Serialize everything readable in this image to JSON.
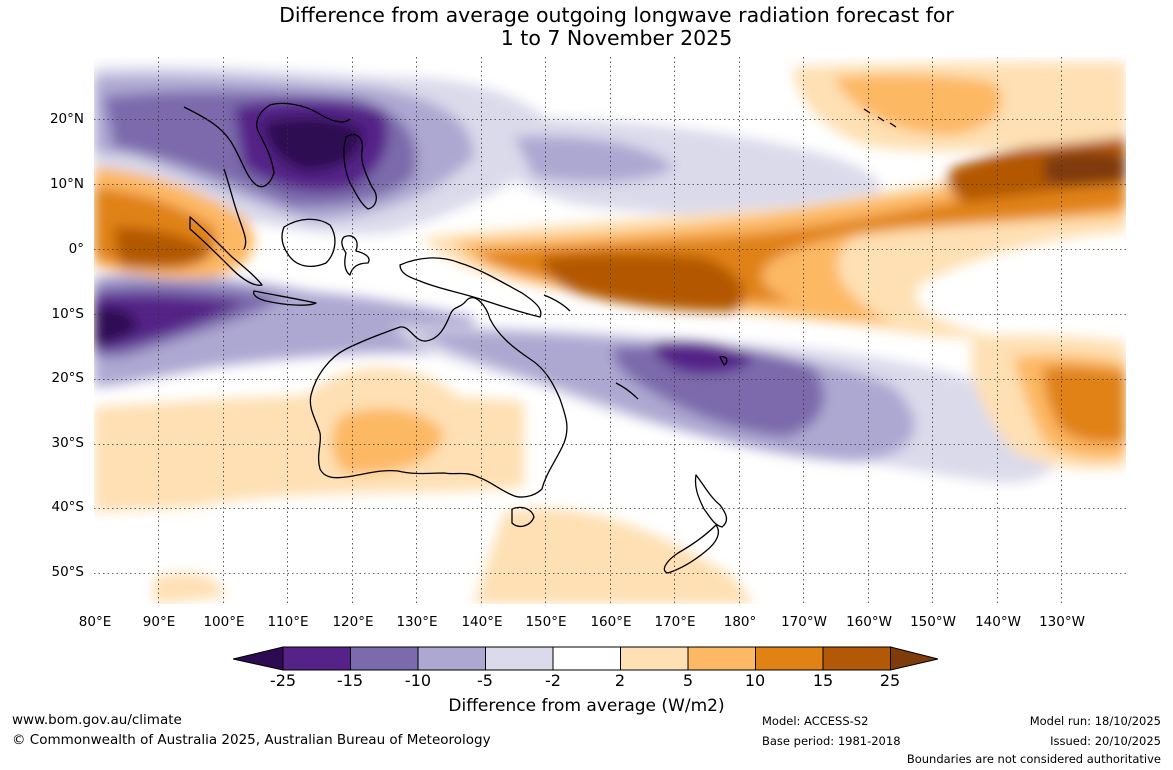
{
  "title": {
    "line1": "Difference from average outgoing longwave radiation forecast for",
    "line2": "1 to 7 November 2025"
  },
  "map": {
    "region": "Indo-Pacific, Australia and New Zealand",
    "latitude_labels": [
      "20°N",
      "10°N",
      "0°",
      "10°S",
      "20°S",
      "30°S",
      "40°S",
      "50°S"
    ],
    "longitude_labels": [
      "80°E",
      "90°E",
      "100°E",
      "110°E",
      "120°E",
      "130°E",
      "140°E",
      "150°E",
      "160°E",
      "170°E",
      "180°",
      "170°W",
      "160°W",
      "150°W",
      "140°W",
      "130°W"
    ]
  },
  "colorbar": {
    "ticks": [
      "-25",
      "-15",
      "-10",
      "-5",
      "-2",
      "2",
      "5",
      "10",
      "15",
      "25"
    ],
    "colors": [
      "#2e0a52",
      "#542288",
      "#7b6aac",
      "#ada8d2",
      "#dadaeb",
      "#ffffff",
      "#fee0b4",
      "#fdb863",
      "#e08214",
      "#b35806",
      "#7f3b08"
    ],
    "label": "Difference from average (W/m2)"
  },
  "footer": {
    "website": "www.bom.gov.au/climate",
    "copyright": "© Commonwealth of Australia 2025, Australian Bureau of Meteorology",
    "model": "Model: ACCESS-S2",
    "base_period": "Base period: 1981-2018",
    "model_run": "Model run: 18/10/2025",
    "issued": "Issued: 20/10/2025",
    "disclaimer": "Boundaries are not considered authoritative"
  }
}
